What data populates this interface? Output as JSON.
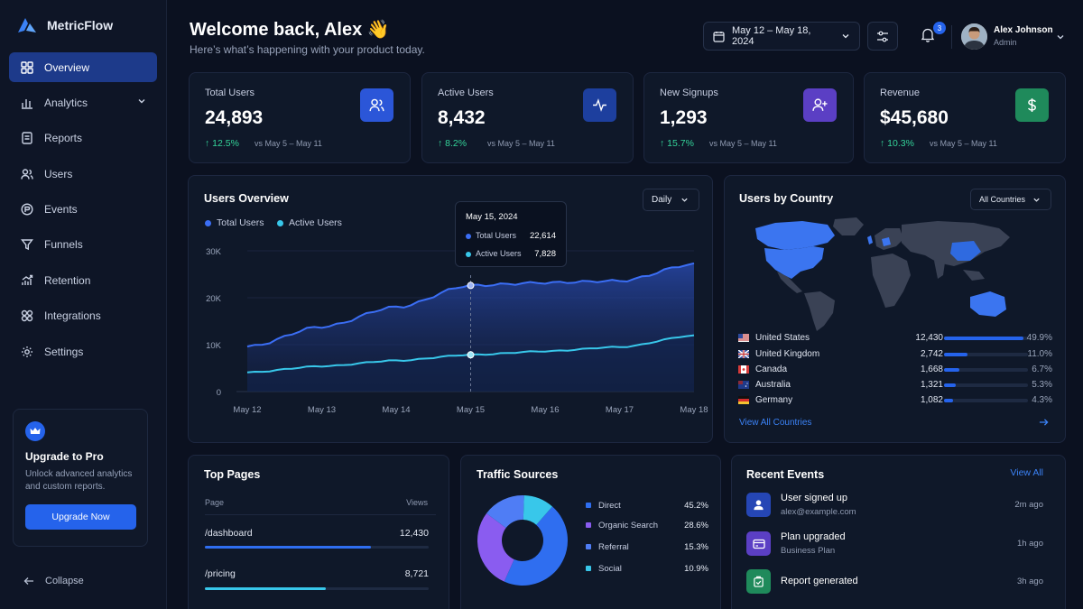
{
  "app": {
    "name": "MetricFlow"
  },
  "sidebar": {
    "items": [
      {
        "label": "Overview",
        "icon": "grid-icon",
        "active": true
      },
      {
        "label": "Analytics",
        "icon": "bar-chart-icon"
      },
      {
        "label": "Reports",
        "icon": "document-icon"
      },
      {
        "label": "Users",
        "icon": "users-icon"
      },
      {
        "label": "Events",
        "icon": "events-icon"
      },
      {
        "label": "Funnels",
        "icon": "funnel-icon"
      },
      {
        "label": "Retention",
        "icon": "retention-icon"
      },
      {
        "label": "Integrations",
        "icon": "integrations-icon"
      },
      {
        "label": "Settings",
        "icon": "gear-icon"
      }
    ],
    "upgrade": {
      "title": "Upgrade to Pro",
      "text_line1": "Unlock advanced analytics",
      "text_line2": "and custom reports.",
      "button": "Upgrade Now"
    },
    "collapse_label": "Collapse"
  },
  "header": {
    "title": "Welcome back, Alex 👋",
    "subtitle": "Here’s what’s happening with your product today.",
    "date_range": "May 12 – May 18, 2024",
    "notifications": "3",
    "user": {
      "name": "Alex Johnson",
      "role": "Admin"
    }
  },
  "stats": [
    {
      "title": "Total Users",
      "value": "24,893",
      "delta": "12.5%",
      "compare": "vs May 5 – May 11",
      "icon": "users-icon",
      "color": "#2b56d8"
    },
    {
      "title": "Active Users",
      "value": "8,432",
      "delta": "8.2%",
      "compare": "vs May 5 – May 11",
      "icon": "activity-icon",
      "color": "#1d3f9e"
    },
    {
      "title": "New Signups",
      "value": "1,293",
      "delta": "15.7%",
      "compare": "vs May 5 – May 11",
      "icon": "user-plus-icon",
      "color": "#5b3fc4"
    },
    {
      "title": "Revenue",
      "value": "$45,680",
      "delta": "10.3%",
      "compare": "vs May 5 – May 11",
      "icon": "dollar-icon",
      "color": "#1f8a5b"
    }
  ],
  "users_overview": {
    "title": "Users Overview",
    "period": "Daily",
    "legend": {
      "total": "Total Users",
      "active": "Active Users"
    },
    "tooltip": {
      "date": "May 15, 2024",
      "total_label": "Total Users",
      "total_value": "22,614",
      "active_label": "Active Users",
      "active_value": "7,828"
    }
  },
  "chart_data": {
    "type": "area",
    "categories": [
      "May 12",
      "May 13",
      "May 14",
      "May 15",
      "May 16",
      "May 17",
      "May 18"
    ],
    "y_ticks": [
      "0",
      "10K",
      "20K",
      "30K"
    ],
    "ylim": [
      0,
      30000
    ],
    "series": [
      {
        "name": "Total Users",
        "color": "#3b6ef5",
        "values": [
          9600,
          13800,
          18000,
          22614,
          23200,
          23600,
          27100
        ]
      },
      {
        "name": "Active Users",
        "color": "#38c7ea",
        "values": [
          4100,
          5400,
          6600,
          7828,
          8600,
          9500,
          11900
        ]
      }
    ]
  },
  "countries": {
    "title": "Users by Country",
    "filter": "All Countries",
    "rows": [
      {
        "name": "United States",
        "value": "12,430",
        "pct": "49.9%",
        "share": 0.95,
        "flag": "us"
      },
      {
        "name": "United Kingdom",
        "value": "2,742",
        "pct": "11.0%",
        "share": 0.28,
        "flag": "uk"
      },
      {
        "name": "Canada",
        "value": "1,668",
        "pct": "6.7%",
        "share": 0.18,
        "flag": "ca"
      },
      {
        "name": "Australia",
        "value": "1,321",
        "pct": "5.3%",
        "share": 0.14,
        "flag": "au"
      },
      {
        "name": "Germany",
        "value": "1,082",
        "pct": "4.3%",
        "share": 0.11,
        "flag": "de"
      }
    ],
    "view_all": "View All Countries"
  },
  "top_pages": {
    "title": "Top Pages",
    "col_page": "Page",
    "col_views": "Views",
    "rows": [
      {
        "page": "/dashboard",
        "views": "12,430",
        "share": 0.74
      },
      {
        "page": "/pricing",
        "views": "8,721",
        "share": 0.54
      }
    ]
  },
  "traffic": {
    "title": "Traffic Sources",
    "rows": [
      {
        "label": "Direct",
        "pct": "45.2%",
        "value": 45.2,
        "color": "#2f6ef0"
      },
      {
        "label": "Organic Search",
        "pct": "28.6%",
        "value": 28.6,
        "color": "#8a5cf0"
      },
      {
        "label": "Referral",
        "pct": "15.3%",
        "value": 15.3,
        "color": "#4f7df5"
      },
      {
        "label": "Social",
        "pct": "10.9%",
        "value": 10.9,
        "color": "#38c7ea"
      }
    ]
  },
  "events": {
    "title": "Recent Events",
    "view_all": "View All",
    "rows": [
      {
        "title": "User signed up",
        "sub": "alex@example.com",
        "time": "2m ago",
        "icon": "user-icon",
        "color": "#2546b5"
      },
      {
        "title": "Plan upgraded",
        "sub": "Business Plan",
        "time": "1h ago",
        "icon": "card-icon",
        "color": "#5b3fc4"
      },
      {
        "title": "Report generated",
        "sub": "",
        "time": "3h ago",
        "icon": "report-icon",
        "color": "#1f8a5b"
      }
    ]
  }
}
